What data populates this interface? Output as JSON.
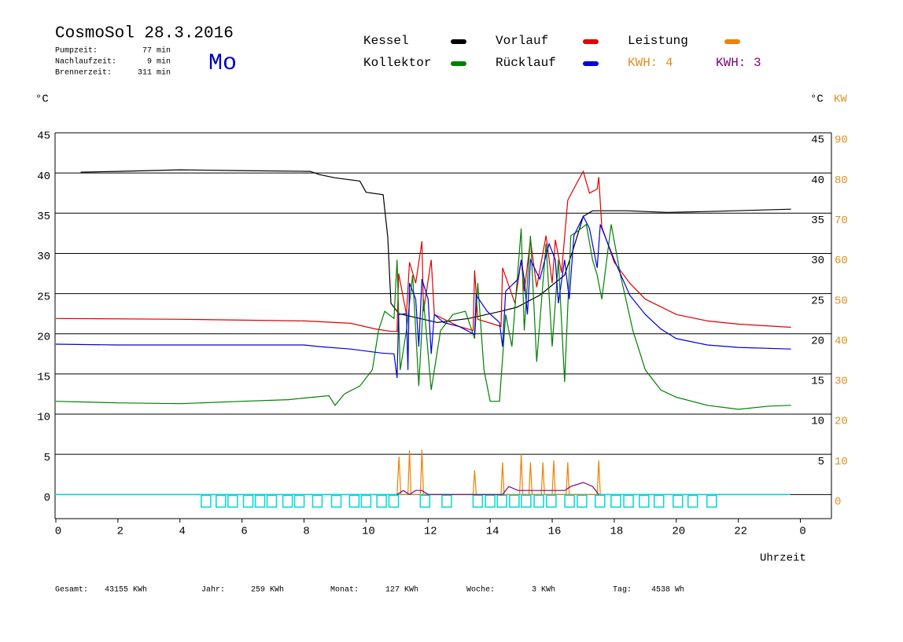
{
  "header": {
    "title": "CosmoSol 28.3.2016",
    "weekday": "Mo",
    "stats": [
      {
        "label": "Pumpzeit:",
        "value": "77 min"
      },
      {
        "label": "Nachlaufzeit:",
        "value": "9 min"
      },
      {
        "label": "Brennerzeit:",
        "value": "311 min"
      }
    ]
  },
  "footer": [
    {
      "label": "Gesamt:",
      "value": "43155 KWh"
    },
    {
      "label": "Jahr:",
      "value": "259 KWh"
    },
    {
      "label": "Monat:",
      "value": "127 KWh"
    },
    {
      "label": "Woche:",
      "value": "3 KWh"
    },
    {
      "label": "Tag:",
      "value": "4538 Wh"
    }
  ],
  "chart_data": {
    "type": "line",
    "y_unit": "°C",
    "y2_unit": "KW",
    "x_label": "Uhrzeit",
    "grid": true,
    "xlim": [
      0,
      25
    ],
    "xticks": [
      0,
      2,
      4,
      6,
      8,
      10,
      12,
      14,
      16,
      18,
      20,
      22,
      {
        "value": 24,
        "label": "0"
      }
    ],
    "ylim": [
      -3,
      45
    ],
    "yticks": [
      0,
      5,
      10,
      15,
      20,
      25,
      30,
      35,
      40,
      45
    ],
    "y2lim": [
      -6,
      90
    ],
    "y2ticks": [
      0,
      10,
      20,
      30,
      40,
      50,
      60,
      70,
      80,
      90
    ],
    "series": [
      {
        "name": "Kessel",
        "color": "#000000",
        "x": [
          0.8,
          2,
          4,
          6,
          8.2,
          8.5,
          9,
          9.8,
          10,
          10.55,
          10.7,
          10.8,
          11.06,
          12.3,
          13.3,
          14.35,
          14.86,
          15.6,
          16.4,
          16.65,
          17.0,
          17.3,
          18.4,
          19.7,
          21,
          23.7
        ],
        "values": [
          40.1,
          40.2,
          40.4,
          40.3,
          40.2,
          39.8,
          39.4,
          39.0,
          37.6,
          37.3,
          32,
          23.8,
          22.5,
          21.4,
          21.9,
          22.8,
          23.3,
          24.8,
          27.3,
          30.2,
          34.6,
          35.3,
          35.3,
          35.1,
          35.2,
          35.5
        ]
      },
      {
        "name": "Vorlauf",
        "color": "#e00000",
        "x": [
          0,
          4,
          8,
          9.5,
          10.3,
          10.8,
          11.0,
          11.05,
          11.3,
          11.4,
          11.6,
          11.8,
          11.85,
          12.1,
          12.2,
          13,
          13.45,
          13.5,
          13.6,
          14.35,
          14.4,
          14.8,
          15.0,
          15.1,
          15.3,
          15.5,
          15.8,
          16.0,
          16.1,
          16.3,
          16.5,
          16.8,
          17.0,
          17.2,
          17.45,
          17.5,
          17.6,
          18,
          18.5,
          19,
          20,
          21,
          22,
          23.7
        ],
        "values": [
          21.9,
          21.8,
          21.6,
          21.3,
          20.6,
          20.3,
          20.3,
          27.5,
          22.4,
          28.9,
          26.3,
          31.5,
          22.8,
          29.2,
          22.4,
          20.9,
          20.4,
          27.9,
          21.8,
          20.9,
          28.2,
          23.8,
          29.2,
          25.3,
          31.7,
          25.8,
          32.2,
          26.3,
          31.7,
          27.6,
          36.6,
          38.8,
          40.2,
          37.5,
          38.0,
          39.5,
          33.3,
          28.9,
          26.3,
          24.3,
          22.4,
          21.6,
          21.2,
          20.8
        ]
      },
      {
        "name": "Leistung",
        "color": "#f08000",
        "axis": "y2",
        "x": [
          11.0,
          11.06,
          11.12,
          11.35,
          11.4,
          11.45,
          11.75,
          11.8,
          11.85,
          13.45,
          13.5,
          13.55,
          14.35,
          14.4,
          14.45,
          14.95,
          15.0,
          15.05,
          15.25,
          15.3,
          15.35,
          15.65,
          15.7,
          15.75,
          16.0,
          16.05,
          16.1,
          16.45,
          16.5,
          16.55,
          17.45,
          17.5,
          17.55
        ],
        "values": [
          0,
          9.4,
          0,
          0,
          11,
          0,
          0,
          11.2,
          0,
          0,
          6,
          0,
          0,
          8,
          0,
          0,
          10,
          0,
          0,
          8,
          0,
          0,
          8,
          0,
          0,
          8.5,
          0,
          0,
          8,
          0,
          0,
          8.5,
          0
        ]
      },
      {
        "name": "Kollektor",
        "color": "#008000",
        "x": [
          0,
          2,
          4,
          6,
          7.5,
          8,
          8.8,
          9.0,
          9.3,
          9.8,
          10.2,
          10.4,
          10.6,
          10.9,
          11.0,
          11.1,
          11.3,
          11.5,
          11.7,
          11.85,
          12.1,
          12.4,
          12.8,
          13.2,
          13.5,
          13.6,
          13.8,
          14.0,
          14.3,
          14.5,
          14.7,
          15.0,
          15.1,
          15.3,
          15.5,
          15.8,
          16.0,
          16.2,
          16.4,
          16.6,
          16.8,
          17.1,
          17.3,
          17.45,
          17.6,
          17.9,
          18.2,
          18.6,
          19,
          19.5,
          20,
          21,
          22,
          23,
          23.7
        ],
        "values": [
          11.6,
          11.4,
          11.3,
          11.6,
          11.8,
          12.0,
          12.3,
          11.1,
          12.5,
          13.5,
          15.5,
          20.4,
          22.8,
          21.9,
          29.2,
          15.5,
          20.4,
          27.3,
          13.5,
          24.3,
          13.0,
          20.4,
          22.4,
          22.8,
          19.4,
          26.3,
          15.5,
          11.6,
          11.6,
          22.4,
          18.4,
          33.1,
          20.4,
          32.2,
          16.5,
          31.2,
          18.4,
          29.2,
          14.0,
          32.2,
          32.7,
          33.6,
          29.2,
          27.3,
          24.3,
          33.6,
          27.3,
          20.4,
          15.5,
          13.0,
          12.1,
          11.1,
          10.6,
          11.0,
          11.1
        ]
      },
      {
        "name": "Rücklauf",
        "color": "#0000e0",
        "x": [
          0,
          2,
          5,
          8,
          8.5,
          9.5,
          10.5,
          10.9,
          11.0,
          11.05,
          11.3,
          11.35,
          11.4,
          11.6,
          11.7,
          11.8,
          12.0,
          12.1,
          12.2,
          12.5,
          13.0,
          13.5,
          13.55,
          13.9,
          14.3,
          14.4,
          14.5,
          14.9,
          15.0,
          15.1,
          15.2,
          15.3,
          15.6,
          15.9,
          16.1,
          16.2,
          16.4,
          16.55,
          16.7,
          17.0,
          17.2,
          17.45,
          17.55,
          18.0,
          18.5,
          19,
          19.5,
          20,
          21,
          22,
          23.7
        ],
        "values": [
          18.7,
          18.6,
          18.6,
          18.6,
          18.4,
          18.1,
          17.6,
          17.5,
          14.5,
          22.4,
          22.5,
          15.5,
          26.3,
          24.3,
          18.4,
          26.8,
          24.3,
          17.5,
          22.4,
          21.4,
          20.9,
          19.9,
          24.8,
          22.8,
          21.4,
          18.4,
          25.3,
          26.8,
          29.2,
          26.8,
          22.4,
          29.2,
          26.8,
          31.2,
          29.2,
          23.8,
          29.2,
          24.3,
          32.2,
          34.6,
          33.1,
          28.2,
          33.6,
          29.2,
          24.8,
          22.4,
          20.6,
          19.4,
          18.6,
          18.3,
          18.1
        ]
      },
      {
        "color": "#800080",
        "axis": "y2",
        "x": [
          11.0,
          11.2,
          11.4,
          11.6,
          11.8,
          12.0,
          14.4,
          14.6,
          14.9,
          15.2,
          15.5,
          15.8,
          16.1,
          16.4,
          16.6,
          17.0,
          17.3,
          17.5
        ],
        "values": [
          0,
          1,
          0,
          1,
          1,
          0,
          0,
          2,
          1,
          1,
          1,
          1,
          1,
          1,
          2,
          3,
          2,
          0
        ]
      }
    ],
    "kwh_labels": [
      {
        "text": "KWH: 4",
        "color": "#e09020"
      },
      {
        "text": "KWH: 3",
        "color": "#800080"
      }
    ],
    "pump": {
      "color": "#00d8d8",
      "x": [
        4.84,
        5.32,
        5.7,
        6.2,
        6.58,
        6.96,
        7.47,
        7.85,
        8.43,
        9.04,
        9.62,
        10.0,
        10.5,
        10.89,
        11.9,
        12.6,
        13.6,
        14.0,
        14.38,
        14.78,
        15.16,
        15.57,
        15.97,
        16.56,
        16.96,
        17.54,
        18.05,
        18.46,
        18.96,
        19.44,
        20.05,
        20.53,
        21.14
      ]
    }
  }
}
